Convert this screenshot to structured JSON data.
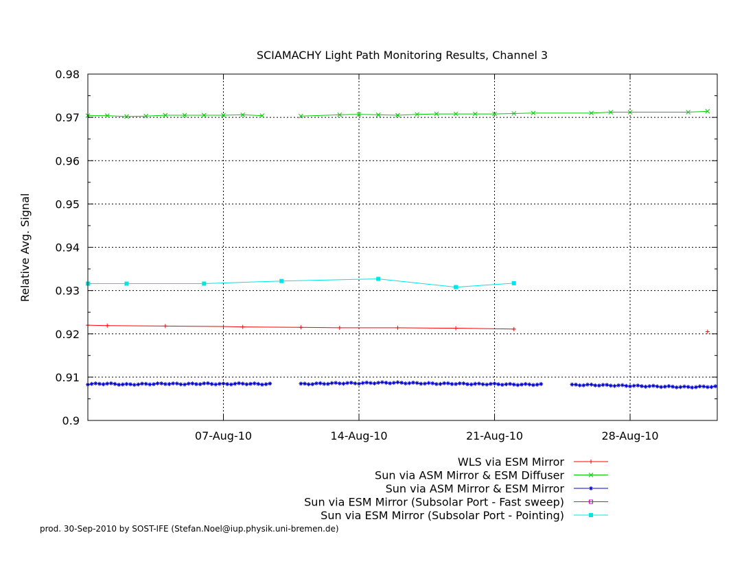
{
  "chart_data": {
    "type": "line",
    "title": "SCIAMACHY Light Path Monitoring Results, Channel 3",
    "xlabel": "",
    "ylabel": "Relative Avg. Signal",
    "xlim": [
      "2010-07-31",
      "2010-09-01"
    ],
    "ylim": [
      0.9,
      0.98
    ],
    "yticks": [
      "0.9",
      "0.91",
      "0.92",
      "0.93",
      "0.94",
      "0.95",
      "0.96",
      "0.97",
      "0.98"
    ],
    "xticks": [
      {
        "date": "2010-08-07",
        "label": "07-Aug-10"
      },
      {
        "date": "2010-08-14",
        "label": "14-Aug-10"
      },
      {
        "date": "2010-08-21",
        "label": "21-Aug-10"
      },
      {
        "date": "2010-08-28",
        "label": "28-Aug-10"
      }
    ],
    "grid": true,
    "legend_position": "bottom-right",
    "series": [
      {
        "name": "WLS via ESM Mirror",
        "color": "#ff0000",
        "marker": "plus",
        "points": [
          [
            "2010-07-31",
            0.922
          ],
          [
            "2010-08-01",
            0.9219
          ],
          [
            "2010-08-04",
            0.9218
          ],
          [
            "2010-08-07",
            0.9217
          ],
          [
            "2010-08-08",
            0.9216
          ],
          [
            "2010-08-11",
            0.9215
          ],
          [
            "2010-08-13",
            0.9214
          ],
          [
            "2010-08-16",
            0.9214
          ],
          [
            "2010-08-19",
            0.9213
          ],
          [
            "2010-08-22",
            0.9211
          ],
          null,
          [
            "2010-09-01",
            0.9205
          ]
        ]
      },
      {
        "name": "Sun via ASM Mirror & ESM Diffuser",
        "color": "#00cc00",
        "marker": "cross",
        "points": [
          [
            "2010-07-31",
            0.9704
          ],
          [
            "2010-08-01",
            0.9704
          ],
          [
            "2010-08-02",
            0.9702
          ],
          [
            "2010-08-03",
            0.9703
          ],
          [
            "2010-08-04",
            0.9705
          ],
          [
            "2010-08-05",
            0.9705
          ],
          [
            "2010-08-06",
            0.9705
          ],
          [
            "2010-08-07",
            0.9705
          ],
          [
            "2010-08-08",
            0.9706
          ],
          [
            "2010-08-09",
            0.9704
          ],
          null,
          [
            "2010-08-11",
            0.9703
          ],
          [
            "2010-08-13",
            0.9706
          ],
          [
            "2010-08-14",
            0.9707
          ],
          [
            "2010-08-15",
            0.9706
          ],
          [
            "2010-08-16",
            0.9705
          ],
          [
            "2010-08-17",
            0.9707
          ],
          [
            "2010-08-18",
            0.9708
          ],
          [
            "2010-08-19",
            0.9708
          ],
          [
            "2010-08-20",
            0.9708
          ],
          [
            "2010-08-21",
            0.9708
          ],
          [
            "2010-08-22",
            0.9709
          ],
          [
            "2010-08-23",
            0.971
          ],
          [
            "2010-08-26",
            0.971
          ],
          [
            "2010-08-27",
            0.9712
          ],
          [
            "2010-08-28",
            0.9712
          ],
          [
            "2010-08-31",
            0.9712
          ],
          [
            "2010-09-01",
            0.9714
          ]
        ]
      },
      {
        "name": "Sun via ASM Mirror & ESM Mirror",
        "color": "#0000cc",
        "marker": "star",
        "segments": [
          {
            "from": "2010-07-31",
            "to": "2010-08-09",
            "values": [
              0.9084,
              0.9085,
              0.9083,
              0.9084,
              0.9085,
              0.9084,
              0.9085,
              0.9084,
              0.9085,
              0.9084
            ]
          },
          {
            "from": "2010-08-11",
            "to": "2010-08-23",
            "values": [
              0.9084,
              0.9085,
              0.9086,
              0.9086,
              0.9087,
              0.9087,
              0.9086,
              0.9085,
              0.9085,
              0.9084,
              0.9084,
              0.9083,
              0.9083
            ]
          },
          {
            "from": "2010-08-25",
            "to": "2010-09-01",
            "values": [
              0.9082,
              0.9082,
              0.9081,
              0.908,
              0.9079,
              0.9078,
              0.9077,
              0.9078
            ]
          }
        ]
      },
      {
        "name": "Sun via ESM Mirror (Subsolar Port - Fast sweep)",
        "color": "#cc00cc",
        "marker": "open-square",
        "points": []
      },
      {
        "name": "Sun via ESM Mirror (Subsolar Port - Pointing)",
        "color": "#00e5e5",
        "marker": "filled-square",
        "points": [
          [
            "2010-07-31",
            0.9316
          ],
          [
            "2010-08-02",
            0.9316
          ],
          [
            "2010-08-06",
            0.9316
          ],
          [
            "2010-08-10",
            0.9322
          ],
          [
            "2010-08-15",
            0.9327
          ],
          [
            "2010-08-19",
            0.9308
          ],
          [
            "2010-08-22",
            0.9317
          ]
        ]
      }
    ]
  },
  "footer": "prod. 30-Sep-2010 by SOST-IFE (Stefan.Noel@iup.physik.uni-bremen.de)"
}
